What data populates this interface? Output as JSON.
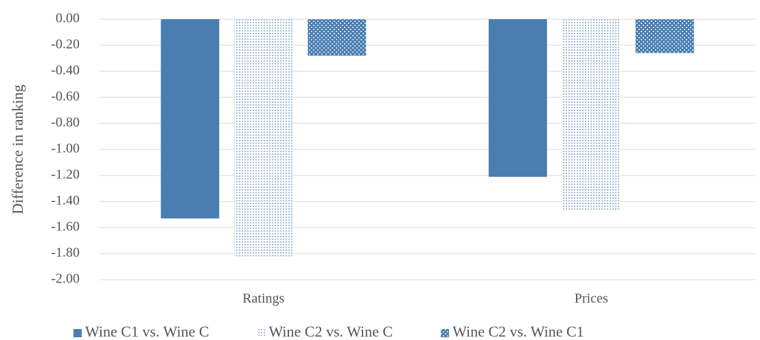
{
  "chart_data": {
    "type": "bar",
    "y_label": "Difference in ranking",
    "categories": [
      "Ratings",
      "Prices"
    ],
    "series": [
      {
        "name": "Wine C1 vs. Wine C",
        "color": "#4a7db0",
        "pattern": "solid",
        "values": [
          -1.53,
          -1.21
        ]
      },
      {
        "name": "Wine C2 vs. Wine C",
        "color": "#4a7db0",
        "pattern": "dots",
        "values": [
          -1.83,
          -1.47
        ]
      },
      {
        "name": "Wine C2 vs. Wine C1",
        "color": "#4a7db0",
        "pattern": "checks",
        "values": [
          -0.28,
          -0.26
        ]
      }
    ],
    "ylim": [
      -2,
      0
    ],
    "yticks": [
      {
        "value": 0,
        "label": "0.00"
      },
      {
        "value": -0.2,
        "label": "-0.20"
      },
      {
        "value": -0.4,
        "label": "-0.40"
      },
      {
        "value": -0.6,
        "label": "-0.60"
      },
      {
        "value": -0.8,
        "label": "-0.80"
      },
      {
        "value": -1,
        "label": "-1.00"
      },
      {
        "value": -1.2,
        "label": "-1.20"
      },
      {
        "value": -1.4,
        "label": "-1.40"
      },
      {
        "value": -1.6,
        "label": "-1.60"
      },
      {
        "value": -1.8,
        "label": "-1.80"
      },
      {
        "value": -2,
        "label": "-2.00"
      }
    ],
    "grid": true,
    "legend": "bottom"
  }
}
